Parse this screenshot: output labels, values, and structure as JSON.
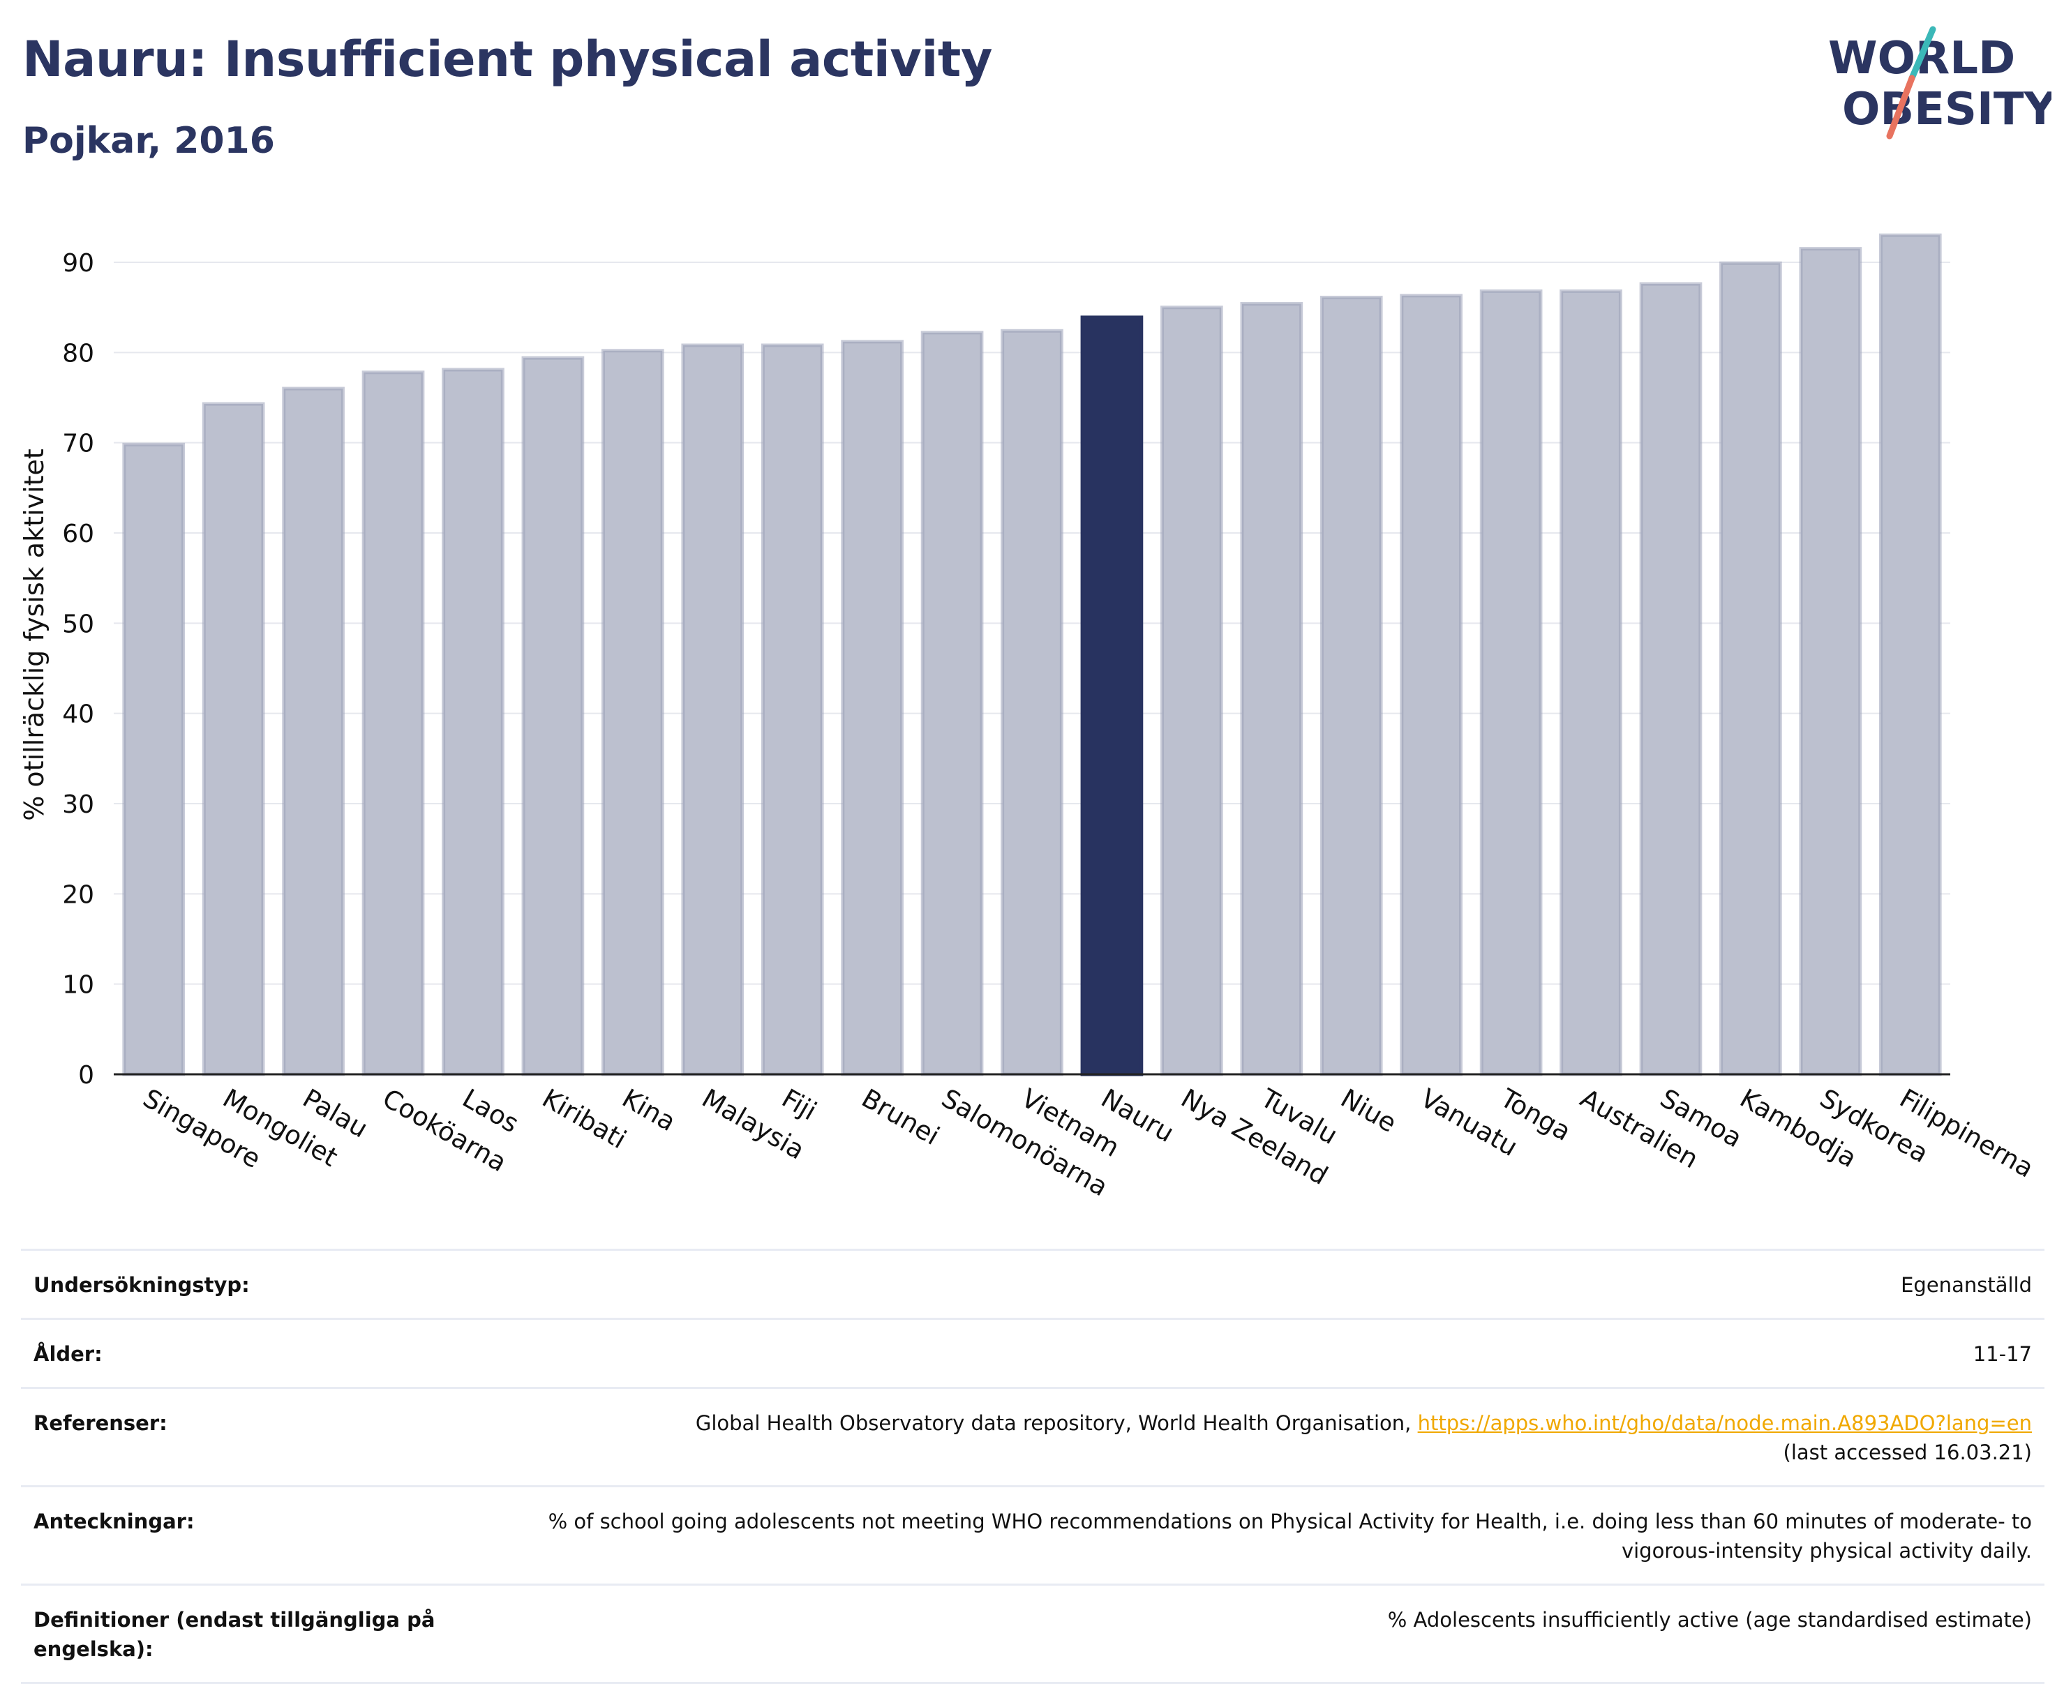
{
  "title": "Nauru: Insufficient physical activity",
  "subtitle": "Pojkar, 2016",
  "logo": {
    "line1": "WORLD",
    "line2": "OBESITY"
  },
  "colors": {
    "bar": "#bcc0cf",
    "bar_stroke": "#9aa1b8",
    "highlight": "#283360",
    "text_dark": "#2b3561",
    "link": "#f0a800",
    "accent_teal": "#3bb8b8",
    "accent_coral": "#e8735f"
  },
  "chart_data": {
    "type": "bar",
    "ylabel": "% otillräcklig fysisk aktivitet",
    "ylim": [
      0,
      95
    ],
    "yticks": [
      0,
      10,
      20,
      30,
      40,
      50,
      60,
      70,
      80,
      90
    ],
    "grid": true,
    "highlight": "Nauru",
    "categories": [
      "Singapore",
      "Mongoliet",
      "Palau",
      "Cooköarna",
      "Laos",
      "Kiribati",
      "Kina",
      "Malaysia",
      "Fiji",
      "Brunei",
      "Salomonöarna",
      "Vietnam",
      "Nauru",
      "Nya Zeeland",
      "Tuvalu",
      "Niue",
      "Vanuatu",
      "Tonga",
      "Australien",
      "Samoa",
      "Kambodja",
      "Sydkorea",
      "Filippinerna"
    ],
    "values": [
      69.8,
      74.3,
      76.0,
      77.8,
      78.1,
      79.4,
      80.2,
      80.8,
      80.8,
      81.2,
      82.2,
      82.4,
      83.9,
      85.0,
      85.4,
      86.1,
      86.3,
      86.8,
      86.8,
      87.6,
      89.9,
      91.5,
      93.0
    ]
  },
  "info": {
    "survey_label": "Undersökningstyp:",
    "survey_value": "Egenanställd",
    "age_label": "Ålder:",
    "age_value": "11-17",
    "ref_label": "Referenser:",
    "ref_text": "Global Health Observatory data repository, World Health Organisation, ",
    "ref_link": "https://apps.who.int/gho/data/node.main.A893ADO?lang=en",
    "ref_accessed": "(last accessed 16.03.21)",
    "notes_label": "Anteckningar:",
    "notes_value": "% of school going adolescents not meeting WHO recommendations on Physical Activity for Health, i.e. doing less than 60 minutes of moderate- to vigorous-intensity physical activity daily.",
    "def_label": "Definitioner (endast tillgängliga på engelska):",
    "def_value": "% Adolescents insufficiently active (age standardised estimate)"
  }
}
